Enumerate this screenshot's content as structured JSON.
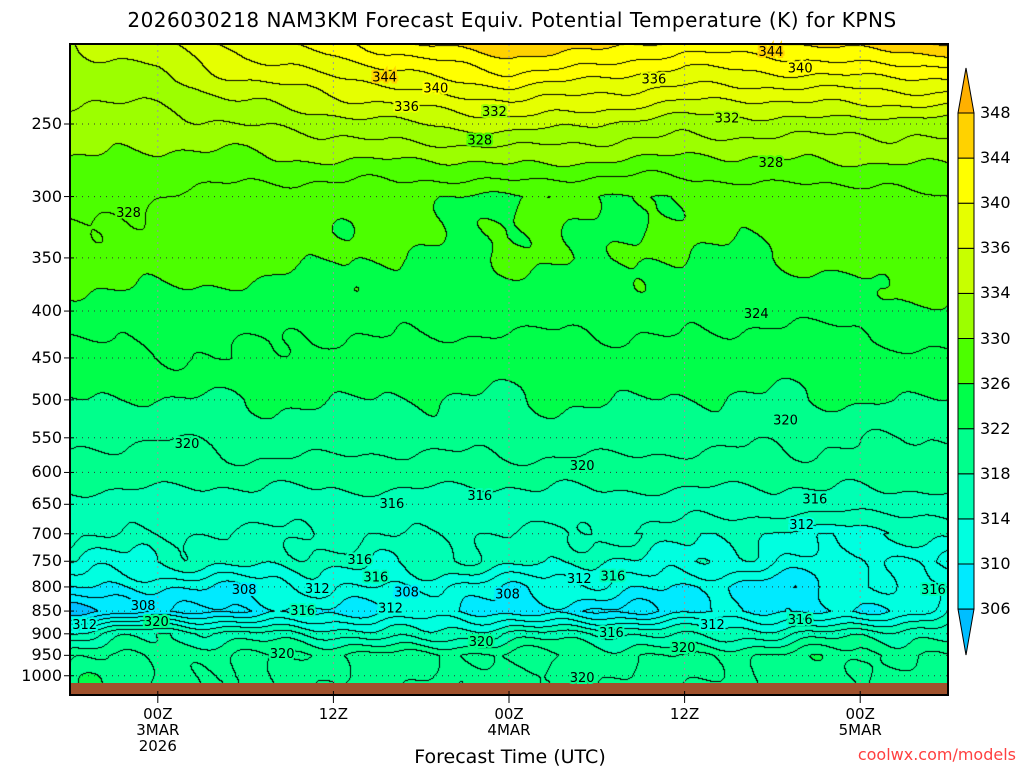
{
  "chart_data": {
    "type": "heatmap",
    "subtype": "filled-contour time-height cross section",
    "title": "2026030218 NAM3KM Forecast Equiv. Potential Temperature (K) for KPNS",
    "xlabel": "Forecast Time (UTC)",
    "ylabel": "",
    "x_units": "hours after 00Z 3MAR 2026",
    "xlim": [
      -6,
      54
    ],
    "ylim_hpa": [
      205,
      1013
    ],
    "y_scale": "log-pressure",
    "x_ticks": [
      {
        "t": 0,
        "label": "00Z",
        "sub": "3MAR",
        "sub2": "2026"
      },
      {
        "t": 12,
        "label": "12Z",
        "sub": "",
        "sub2": ""
      },
      {
        "t": 24,
        "label": "00Z",
        "sub": "4MAR",
        "sub2": ""
      },
      {
        "t": 36,
        "label": "12Z",
        "sub": "",
        "sub2": ""
      },
      {
        "t": 48,
        "label": "00Z",
        "sub": "5MAR",
        "sub2": ""
      }
    ],
    "y_ticks": [
      250,
      300,
      350,
      400,
      450,
      500,
      550,
      600,
      650,
      700,
      750,
      800,
      850,
      900,
      950,
      1000
    ],
    "grid": true,
    "contour_interval": 2,
    "grid_times": [
      -6,
      0,
      6,
      12,
      18,
      24,
      30,
      36,
      42,
      48,
      54
    ],
    "grid_pressures": [
      200,
      250,
      300,
      350,
      400,
      450,
      500,
      550,
      600,
      650,
      700,
      750,
      800,
      850,
      900,
      950,
      1000
    ],
    "values": [
      [
        334,
        336,
        340,
        342,
        345,
        347,
        346,
        344,
        345,
        346,
        347
      ],
      [
        331,
        331,
        332,
        333,
        334,
        335,
        334,
        333,
        333,
        333,
        333
      ],
      [
        329,
        328,
        327,
        327,
        326,
        326,
        326,
        326,
        327,
        327,
        328
      ],
      [
        327,
        327,
        327,
        326,
        326,
        326,
        326,
        326,
        326,
        327,
        327
      ],
      [
        325,
        325,
        325,
        325,
        325,
        325,
        325,
        325,
        324,
        325,
        326
      ],
      [
        323,
        324,
        324,
        323,
        323,
        323,
        323,
        323,
        323,
        323,
        324
      ],
      [
        322,
        322,
        322,
        322,
        322,
        322,
        322,
        322,
        322,
        322,
        322
      ],
      [
        320.5,
        320,
        321,
        321,
        321,
        321,
        321,
        321,
        320.5,
        320,
        320
      ],
      [
        319,
        319,
        319,
        319,
        319,
        319,
        319,
        319,
        319,
        319,
        319
      ],
      [
        317,
        317,
        317,
        317,
        317,
        317,
        317,
        317,
        317,
        317,
        317
      ],
      [
        316,
        316,
        316,
        316,
        316,
        316,
        316,
        315,
        314,
        313,
        315
      ],
      [
        314,
        314,
        315,
        315,
        315,
        315,
        314,
        314,
        312,
        311,
        313
      ],
      [
        310,
        310,
        311,
        312,
        312,
        311,
        311,
        310,
        309,
        311,
        312
      ],
      [
        306,
        307,
        308,
        310,
        310,
        309,
        308,
        309,
        310,
        309,
        314
      ],
      [
        314,
        318,
        317,
        315,
        314,
        317,
        316,
        315,
        316,
        317,
        317
      ],
      [
        320,
        320,
        319,
        321,
        321,
        320,
        320,
        320,
        320,
        321,
        320
      ],
      [
        321,
        320,
        320,
        320,
        320,
        319,
        320,
        320,
        321,
        321,
        320
      ]
    ],
    "contour_labels": [
      {
        "text": "344",
        "t": 15.5,
        "p": 222
      },
      {
        "text": "344",
        "t": 41.9,
        "p": 208
      },
      {
        "text": "340",
        "t": 19.0,
        "p": 228
      },
      {
        "text": "340",
        "t": 43.9,
        "p": 217
      },
      {
        "text": "336",
        "t": 17.0,
        "p": 239
      },
      {
        "text": "336",
        "t": 33.9,
        "p": 223
      },
      {
        "text": "332",
        "t": 23.0,
        "p": 242
      },
      {
        "text": "332",
        "t": 38.9,
        "p": 246
      },
      {
        "text": "328",
        "t": -2.0,
        "p": 312
      },
      {
        "text": "328",
        "t": 22.0,
        "p": 260
      },
      {
        "text": "328",
        "t": 41.9,
        "p": 275
      },
      {
        "text": "324",
        "t": 40.9,
        "p": 402
      },
      {
        "text": "320",
        "t": 2.0,
        "p": 557
      },
      {
        "text": "320",
        "t": 42.9,
        "p": 525
      },
      {
        "text": "320",
        "t": 29.0,
        "p": 589
      },
      {
        "text": "316",
        "t": 16.0,
        "p": 648
      },
      {
        "text": "316",
        "t": 22.0,
        "p": 635
      },
      {
        "text": "316",
        "t": 44.9,
        "p": 641
      },
      {
        "text": "312",
        "t": 44.0,
        "p": 683
      },
      {
        "text": "316",
        "t": 13.8,
        "p": 746
      },
      {
        "text": "316",
        "t": 14.9,
        "p": 779
      },
      {
        "text": "316",
        "t": 31.1,
        "p": 777
      },
      {
        "text": "312",
        "t": 28.8,
        "p": 782
      },
      {
        "text": "316",
        "t": 53.0,
        "p": 804
      },
      {
        "text": "308",
        "t": 5.9,
        "p": 804
      },
      {
        "text": "312",
        "t": 10.9,
        "p": 802
      },
      {
        "text": "308",
        "t": 17.0,
        "p": 809
      },
      {
        "text": "308",
        "t": 23.9,
        "p": 813
      },
      {
        "text": "308",
        "t": -1.0,
        "p": 837
      },
      {
        "text": "312",
        "t": 15.9,
        "p": 842
      },
      {
        "text": "316",
        "t": 9.9,
        "p": 848
      },
      {
        "text": "316",
        "t": 43.9,
        "p": 867
      },
      {
        "text": "312",
        "t": 37.9,
        "p": 878
      },
      {
        "text": "312",
        "t": -5.0,
        "p": 878
      },
      {
        "text": "320",
        "t": -0.1,
        "p": 872
      },
      {
        "text": "316",
        "t": 31.0,
        "p": 896
      },
      {
        "text": "320",
        "t": 22.1,
        "p": 916
      },
      {
        "text": "320",
        "t": 35.9,
        "p": 930
      },
      {
        "text": "320",
        "t": 8.5,
        "p": 944
      },
      {
        "text": "320",
        "t": 29.0,
        "p": 1003
      }
    ],
    "colorbar": {
      "labels": [
        "348",
        "344",
        "340",
        "336",
        "334",
        "330",
        "326",
        "322",
        "318",
        "314",
        "310",
        "306"
      ],
      "levels": [
        306,
        310,
        314,
        318,
        322,
        326,
        330,
        334,
        336,
        340,
        344,
        348
      ],
      "colors": [
        "#00beff",
        "#00eaff",
        "#00ffe0",
        "#00ffb4",
        "#00ff8c",
        "#00ff4a",
        "#4cff00",
        "#9cff00",
        "#c8ff00",
        "#e6ff00",
        "#ffff00",
        "#ffd200",
        "#ffb000"
      ],
      "ground_color": "#a0522d"
    }
  },
  "watermark": "coolwx.com/models"
}
